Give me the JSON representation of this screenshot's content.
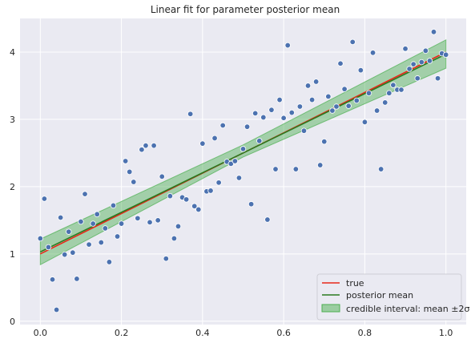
{
  "chart_data": {
    "type": "scatter",
    "title": "Linear fit for parameter posterior mean",
    "xlabel": "",
    "ylabel": "",
    "xlim": [
      -0.05,
      1.05
    ],
    "ylim": [
      -0.05,
      4.5
    ],
    "xticks": [
      0.0,
      0.2,
      0.4,
      0.6,
      0.8,
      1.0
    ],
    "xtick_labels": [
      "0.0",
      "0.2",
      "0.4",
      "0.6",
      "0.8",
      "1.0"
    ],
    "yticks": [
      0,
      1,
      2,
      3,
      4
    ],
    "ytick_labels": [
      "0",
      "1",
      "2",
      "3",
      "4"
    ],
    "grid": true,
    "legend_position": "bottom-right",
    "colors": {
      "background": "#eaeaf2",
      "grid": "#ffffff",
      "points": "#4c72b0",
      "true_line": "#e8271a",
      "mean_line": "#2a7a1f",
      "band": "#4caf50"
    },
    "series": [
      {
        "name": "true",
        "kind": "line",
        "x": [
          0.0,
          1.0
        ],
        "y": [
          1.0,
          4.0
        ]
      },
      {
        "name": "posterior mean",
        "kind": "line",
        "x": [
          0.0,
          1.0
        ],
        "y": [
          1.03,
          3.97
        ]
      },
      {
        "name": "credible interval: mean ±2σ",
        "kind": "band",
        "x": [
          0.0,
          0.5,
          1.0
        ],
        "lower": [
          0.84,
          2.44,
          3.76
        ],
        "upper": [
          1.22,
          2.62,
          4.18
        ]
      },
      {
        "name": "",
        "kind": "scatter",
        "x": [
          0.0,
          0.01,
          0.02,
          0.03,
          0.04,
          0.05,
          0.06,
          0.07,
          0.08,
          0.09,
          0.1,
          0.11,
          0.12,
          0.13,
          0.14,
          0.15,
          0.16,
          0.17,
          0.18,
          0.19,
          0.2,
          0.21,
          0.22,
          0.23,
          0.24,
          0.25,
          0.26,
          0.27,
          0.28,
          0.29,
          0.3,
          0.31,
          0.32,
          0.33,
          0.34,
          0.35,
          0.36,
          0.37,
          0.38,
          0.39,
          0.4,
          0.41,
          0.42,
          0.43,
          0.44,
          0.45,
          0.46,
          0.47,
          0.48,
          0.49,
          0.5,
          0.51,
          0.52,
          0.53,
          0.54,
          0.55,
          0.56,
          0.57,
          0.58,
          0.59,
          0.6,
          0.61,
          0.62,
          0.63,
          0.64,
          0.65,
          0.66,
          0.67,
          0.68,
          0.69,
          0.7,
          0.71,
          0.72,
          0.73,
          0.74,
          0.75,
          0.76,
          0.77,
          0.78,
          0.79,
          0.8,
          0.81,
          0.82,
          0.83,
          0.84,
          0.85,
          0.86,
          0.87,
          0.88,
          0.89,
          0.9,
          0.91,
          0.92,
          0.93,
          0.94,
          0.95,
          0.96,
          0.97,
          0.98,
          0.99,
          1.0
        ],
        "y": [
          1.23,
          1.82,
          1.1,
          0.62,
          0.17,
          1.54,
          0.99,
          1.33,
          1.02,
          0.63,
          1.48,
          1.89,
          1.14,
          1.45,
          1.59,
          1.17,
          1.38,
          0.88,
          1.72,
          1.26,
          1.45,
          2.38,
          2.22,
          2.07,
          1.53,
          2.55,
          2.61,
          1.47,
          2.61,
          1.5,
          2.15,
          0.93,
          1.86,
          1.23,
          1.41,
          1.84,
          1.81,
          3.08,
          1.71,
          1.66,
          2.64,
          1.93,
          1.94,
          2.72,
          2.06,
          2.91,
          2.37,
          2.34,
          2.38,
          2.13,
          2.56,
          2.89,
          1.74,
          3.09,
          2.68,
          3.03,
          1.51,
          3.14,
          2.26,
          3.29,
          3.02,
          4.1,
          3.1,
          2.26,
          3.19,
          2.83,
          3.5,
          3.29,
          3.56,
          2.32,
          2.67,
          3.34,
          3.13,
          3.19,
          3.83,
          3.45,
          3.2,
          4.15,
          3.28,
          3.73,
          2.96,
          3.39,
          3.99,
          3.13,
          2.26,
          3.25,
          3.39,
          3.51,
          3.44,
          3.44,
          4.05,
          3.75,
          3.82,
          3.61,
          3.85,
          4.02,
          3.87,
          4.3,
          3.61,
          3.98,
          3.96
        ]
      }
    ]
  }
}
